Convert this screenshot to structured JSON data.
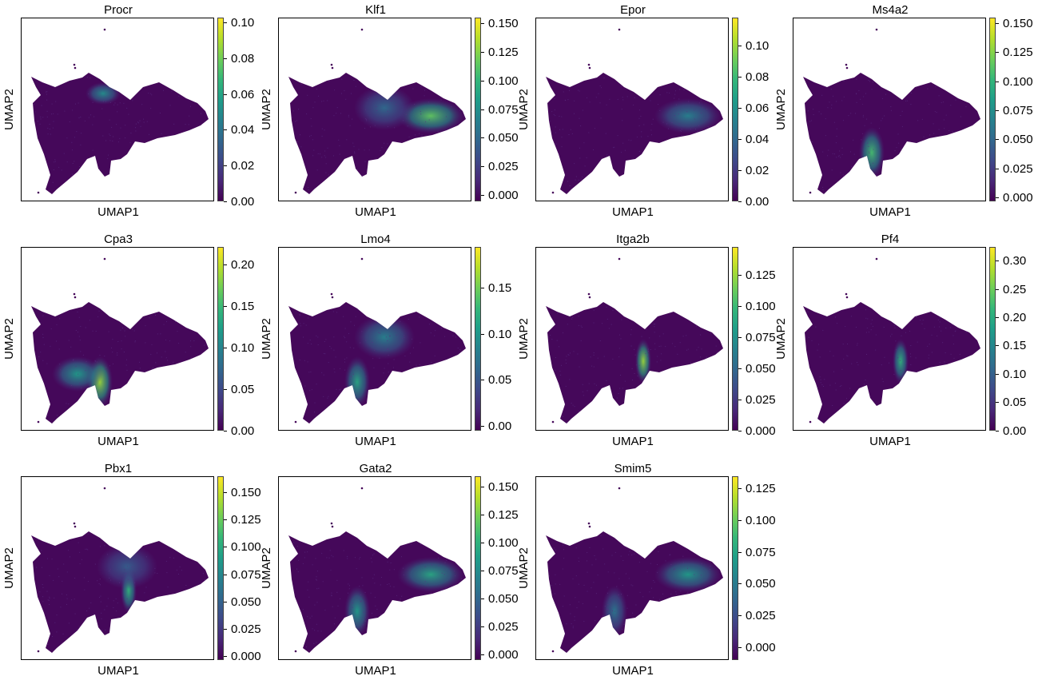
{
  "chart_data": [
    {
      "type": "scatter",
      "title": "Procr",
      "xlabel": "UMAP1",
      "ylabel": "UMAP2",
      "colormap": "viridis",
      "colorbar": {
        "range": [
          0,
          0.103
        ],
        "ticks": [
          "0.00",
          "0.02",
          "0.04",
          "0.06",
          "0.08",
          "0.10"
        ]
      },
      "highlight": [
        {
          "region": "upper-middle",
          "level": 0.5
        }
      ],
      "grid": false
    },
    {
      "type": "scatter",
      "title": "Klf1",
      "xlabel": "UMAP1",
      "ylabel": "UMAP2",
      "colormap": "viridis",
      "colorbar": {
        "range": [
          -0.005,
          0.155
        ],
        "ticks": [
          "0.000",
          "0.025",
          "0.050",
          "0.075",
          "0.100",
          "0.125",
          "0.150"
        ]
      },
      "highlight": [
        {
          "region": "right-lobe",
          "level": 0.75
        },
        {
          "region": "center",
          "level": 0.35
        }
      ],
      "grid": false
    },
    {
      "type": "scatter",
      "title": "Epor",
      "xlabel": "UMAP1",
      "ylabel": "UMAP2",
      "colormap": "viridis",
      "colorbar": {
        "range": [
          0,
          0.118
        ],
        "ticks": [
          "0.00",
          "0.02",
          "0.04",
          "0.06",
          "0.08",
          "0.10"
        ]
      },
      "highlight": [
        {
          "region": "right-lobe",
          "level": 0.45
        }
      ],
      "grid": false
    },
    {
      "type": "scatter",
      "title": "Ms4a2",
      "xlabel": "UMAP1",
      "ylabel": "UMAP2",
      "colormap": "viridis",
      "colorbar": {
        "range": [
          -0.003,
          0.155
        ],
        "ticks": [
          "0.000",
          "0.025",
          "0.050",
          "0.075",
          "0.100",
          "0.125",
          "0.150"
        ]
      },
      "highlight": [
        {
          "region": "lower-branch",
          "level": 0.7
        }
      ],
      "grid": false
    },
    {
      "type": "scatter",
      "title": "Cpa3",
      "xlabel": "UMAP1",
      "ylabel": "UMAP2",
      "colormap": "viridis",
      "colorbar": {
        "range": [
          0,
          0.222
        ],
        "ticks": [
          "0.00",
          "0.05",
          "0.10",
          "0.15",
          "0.20"
        ]
      },
      "highlight": [
        {
          "region": "lower-branch",
          "level": 0.85
        },
        {
          "region": "left-lower",
          "level": 0.55
        }
      ],
      "grid": false
    },
    {
      "type": "scatter",
      "title": "Lmo4",
      "xlabel": "UMAP1",
      "ylabel": "UMAP2",
      "colormap": "viridis",
      "colorbar": {
        "range": [
          -0.005,
          0.195
        ],
        "ticks": [
          "0.00",
          "0.05",
          "0.10",
          "0.15"
        ]
      },
      "highlight": [
        {
          "region": "lower-branch",
          "level": 0.6
        },
        {
          "region": "center",
          "level": 0.45
        }
      ],
      "grid": false
    },
    {
      "type": "scatter",
      "title": "Itga2b",
      "xlabel": "UMAP1",
      "ylabel": "UMAP2",
      "colormap": "viridis",
      "colorbar": {
        "range": [
          0,
          0.148
        ],
        "ticks": [
          "0.000",
          "0.025",
          "0.050",
          "0.075",
          "0.100",
          "0.125"
        ]
      },
      "highlight": [
        {
          "region": "mid-stripe",
          "level": 0.85
        }
      ],
      "grid": false
    },
    {
      "type": "scatter",
      "title": "Pf4",
      "xlabel": "UMAP1",
      "ylabel": "UMAP2",
      "colormap": "viridis",
      "colorbar": {
        "range": [
          0,
          0.325
        ],
        "ticks": [
          "0.00",
          "0.05",
          "0.10",
          "0.15",
          "0.20",
          "0.25",
          "0.30"
        ]
      },
      "highlight": [
        {
          "region": "mid-stripe",
          "level": 0.65
        }
      ],
      "grid": false
    },
    {
      "type": "scatter",
      "title": "Pbx1",
      "xlabel": "UMAP1",
      "ylabel": "UMAP2",
      "colormap": "viridis",
      "colorbar": {
        "range": [
          -0.003,
          0.165
        ],
        "ticks": [
          "0.000",
          "0.025",
          "0.050",
          "0.075",
          "0.100",
          "0.125",
          "0.150"
        ]
      },
      "highlight": [
        {
          "region": "mid-stripe",
          "level": 0.65
        },
        {
          "region": "center",
          "level": 0.3
        }
      ],
      "grid": false
    },
    {
      "type": "scatter",
      "title": "Gata2",
      "xlabel": "UMAP1",
      "ylabel": "UMAP2",
      "colormap": "viridis",
      "colorbar": {
        "range": [
          -0.005,
          0.16
        ],
        "ticks": [
          "0.000",
          "0.025",
          "0.050",
          "0.075",
          "0.100",
          "0.125",
          "0.150"
        ]
      },
      "highlight": [
        {
          "region": "right-lobe",
          "level": 0.6
        },
        {
          "region": "lower-branch",
          "level": 0.55
        }
      ],
      "grid": false
    },
    {
      "type": "scatter",
      "title": "Smim5",
      "xlabel": "UMAP1",
      "ylabel": "UMAP2",
      "colormap": "viridis",
      "colorbar": {
        "range": [
          -0.01,
          0.135
        ],
        "ticks": [
          "0.000",
          "0.025",
          "0.050",
          "0.075",
          "0.100",
          "0.125"
        ]
      },
      "highlight": [
        {
          "region": "right-lobe",
          "level": 0.55
        },
        {
          "region": "lower-branch",
          "level": 0.4
        }
      ],
      "grid": false
    }
  ]
}
